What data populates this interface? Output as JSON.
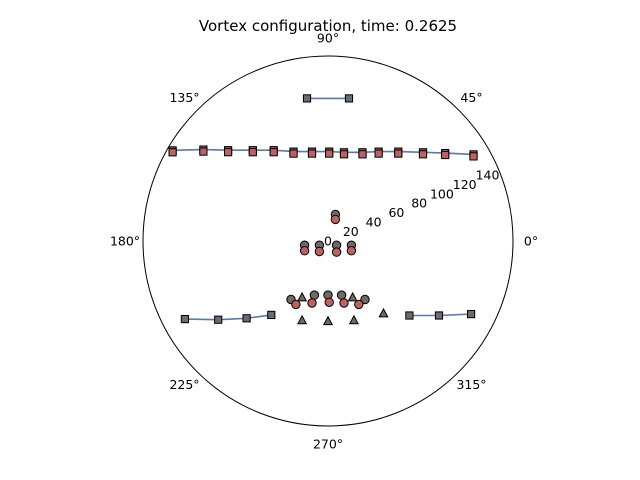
{
  "chart_data": {
    "type": "scatter",
    "projection": "polar",
    "title": "Vortex configuration, time: 0.2625",
    "grid": false,
    "legend": "none",
    "theta_tick_labels": [
      "0°",
      "45°",
      "90°",
      "135°",
      "180°",
      "225°",
      "270°",
      "315°"
    ],
    "theta_ticks_deg": [
      0,
      45,
      90,
      135,
      180,
      225,
      270,
      315
    ],
    "r_tick_labels": [
      "0",
      "20",
      "40",
      "60",
      "80",
      "100",
      "120",
      "140"
    ],
    "r_ticks": [
      0,
      20,
      40,
      60,
      80,
      100,
      120,
      140
    ],
    "r_label_angle_deg": 22.5,
    "rlim": [
      0,
      150
    ],
    "colors": {
      "grey_marker": "#6b6b6b",
      "red_marker": "#c06060",
      "track_line": "#5b79aa",
      "marker_edge": "#000000"
    },
    "series": [
      {
        "marker": "square",
        "color": "grey",
        "connected": true,
        "points": [
          [
            -17,
            115.6
          ],
          [
            17,
            115.6
          ]
        ]
      },
      {
        "marker": "square",
        "color": "grey",
        "connected": true,
        "points": [
          [
            -126,
            73.5
          ],
          [
            -101,
            74.1
          ],
          [
            -81,
            73.6
          ],
          [
            -61,
            73.6
          ],
          [
            -44,
            73.6
          ],
          [
            -28,
            72.5
          ],
          [
            -13,
            72.5
          ],
          [
            1,
            72.5
          ],
          [
            13,
            71.9
          ],
          [
            28,
            71.9
          ],
          [
            41,
            72.5
          ],
          [
            57,
            72.5
          ],
          [
            77,
            71.9
          ],
          [
            95,
            71.3
          ],
          [
            118,
            70.2
          ]
        ]
      },
      {
        "marker": "square",
        "color": "red",
        "connected": false,
        "points": [
          [
            -126,
            71.9
          ],
          [
            -101,
            72.5
          ],
          [
            -81,
            72.0
          ],
          [
            -61,
            72.0
          ],
          [
            -44,
            72.0
          ],
          [
            -28,
            70.9
          ],
          [
            -13,
            70.9
          ],
          [
            1,
            70.9
          ],
          [
            13,
            70.3
          ],
          [
            28,
            70.3
          ],
          [
            41,
            70.9
          ],
          [
            57,
            70.9
          ],
          [
            77,
            70.3
          ],
          [
            95,
            69.7
          ],
          [
            118,
            68.6
          ]
        ]
      },
      {
        "marker": "circle",
        "color": "grey",
        "connected": false,
        "points": [
          [
            6,
            21.5
          ],
          [
            -19,
            -3.4
          ],
          [
            -7,
            -3.4
          ],
          [
            7,
            -3.4
          ],
          [
            19,
            -3.4
          ],
          [
            -30,
            -47.4
          ],
          [
            -11,
            -43.9
          ],
          [
            0,
            -43.9
          ],
          [
            11,
            -43.9
          ],
          [
            30,
            -47.4
          ]
        ]
      },
      {
        "marker": "circle",
        "color": "red",
        "connected": false,
        "points": [
          [
            6,
            17.5
          ],
          [
            -19,
            -7.9
          ],
          [
            -7,
            -8.5
          ],
          [
            7,
            -9.0
          ],
          [
            19,
            -7.9
          ],
          [
            -26,
            -51.4
          ],
          [
            -13,
            -50.3
          ],
          [
            1,
            -49.7
          ],
          [
            13,
            -50.3
          ],
          [
            25,
            -51.4
          ]
        ]
      },
      {
        "marker": "triangle",
        "color": "grey",
        "connected": false,
        "points": [
          [
            -21,
            -45.8
          ],
          [
            20,
            -45.8
          ],
          [
            45,
            -58.8
          ],
          [
            -21,
            -64.4
          ],
          [
            0,
            -65.0
          ],
          [
            21,
            -64.4
          ]
        ]
      },
      {
        "marker": "square",
        "color": "grey",
        "connected": true,
        "points": [
          [
            -116,
            -63.3
          ],
          [
            -89,
            -63.8
          ],
          [
            -66,
            -62.7
          ],
          [
            -46,
            -59.9
          ]
        ]
      },
      {
        "marker": "square",
        "color": "grey",
        "connected": true,
        "points": [
          [
            66,
            -60.4
          ],
          [
            90,
            -60.4
          ],
          [
            116,
            -59.3
          ]
        ]
      }
    ]
  }
}
